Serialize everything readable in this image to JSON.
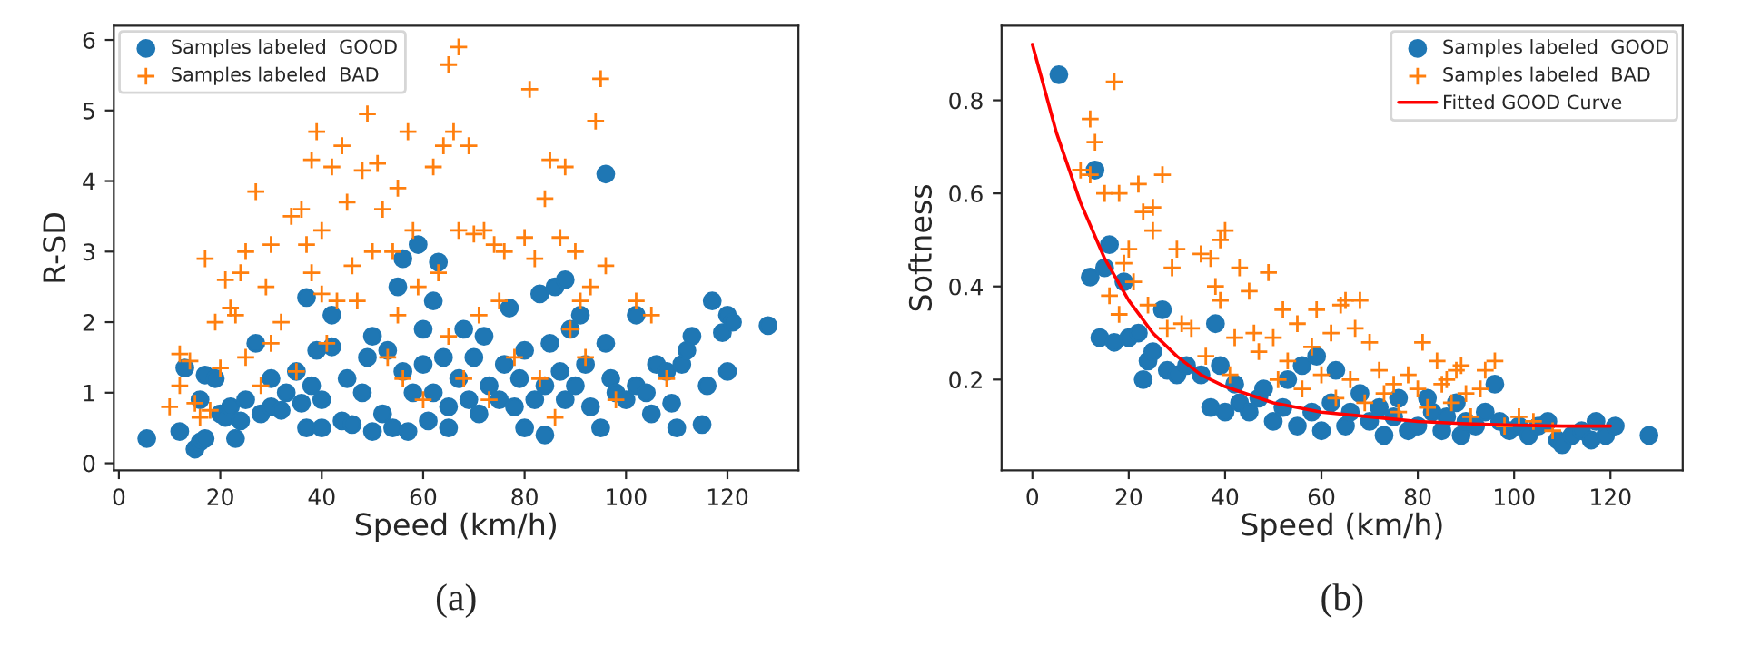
{
  "chart_data": [
    {
      "type": "scatter",
      "xlabel": "Speed (km/h)",
      "ylabel": "R-SD",
      "xlim": [
        -1,
        134
      ],
      "ylim": [
        -0.1,
        6.2
      ],
      "xticks": [
        0,
        20,
        40,
        60,
        80,
        100,
        120
      ],
      "yticks": [
        0,
        1,
        2,
        3,
        4,
        5,
        6
      ],
      "grid": false,
      "legend": "top left",
      "annotations": [
        "(a)"
      ],
      "series": [
        {
          "name": "Samples labeled  GOOD",
          "marker": "circle",
          "color": "#1f77b4",
          "x": [
            5.5,
            12,
            13,
            15,
            16,
            16,
            17,
            17,
            19,
            20,
            21,
            22,
            23,
            24,
            25,
            27,
            28,
            30,
            30,
            32,
            33,
            35,
            36,
            37,
            37,
            38,
            39,
            40,
            40,
            42,
            42,
            44,
            45,
            46,
            48,
            49,
            50,
            50,
            52,
            53,
            54,
            55,
            56,
            56,
            57,
            58,
            59,
            60,
            60,
            61,
            62,
            62,
            63,
            64,
            65,
            65,
            67,
            68,
            69,
            70,
            71,
            72,
            73,
            75,
            76,
            77,
            78,
            79,
            80,
            80,
            82,
            83,
            84,
            84,
            85,
            86,
            87,
            88,
            88,
            89,
            90,
            91,
            92,
            93,
            95,
            96,
            96,
            97,
            98,
            100,
            102,
            102,
            104,
            105,
            106,
            108,
            109,
            110,
            111,
            112,
            113,
            115,
            116,
            117,
            119,
            120,
            120,
            121,
            128
          ],
          "values": [
            0.35,
            0.45,
            1.35,
            0.2,
            0.3,
            0.9,
            1.25,
            0.35,
            1.2,
            0.7,
            0.65,
            0.8,
            0.35,
            0.6,
            0.9,
            1.7,
            0.7,
            1.2,
            0.8,
            0.75,
            1.0,
            1.3,
            0.85,
            2.35,
            0.5,
            1.1,
            1.6,
            0.5,
            0.9,
            1.65,
            2.1,
            0.6,
            1.2,
            0.55,
            1.0,
            1.5,
            1.8,
            0.45,
            0.7,
            1.6,
            0.5,
            2.5,
            1.3,
            2.9,
            0.45,
            1.0,
            3.1,
            1.9,
            1.4,
            0.6,
            2.3,
            1.0,
            2.85,
            1.5,
            0.8,
            0.5,
            1.2,
            1.9,
            0.9,
            1.5,
            0.7,
            1.8,
            1.1,
            0.9,
            1.4,
            2.2,
            0.8,
            1.2,
            0.5,
            1.6,
            0.9,
            2.4,
            1.1,
            0.4,
            1.7,
            2.5,
            1.3,
            0.9,
            2.6,
            1.9,
            1.1,
            2.1,
            1.4,
            0.8,
            0.5,
            4.1,
            1.7,
            1.2,
            1.0,
            0.9,
            1.1,
            2.1,
            1.0,
            0.7,
            1.4,
            1.3,
            0.85,
            0.5,
            1.4,
            1.6,
            1.8,
            0.55,
            1.1,
            2.3,
            1.85,
            2.1,
            1.3,
            2.0,
            1.95
          ]
        },
        {
          "name": "Samples labeled  BAD",
          "marker": "cross",
          "color": "#ff7f0e",
          "x": [
            10,
            12,
            12,
            14,
            15,
            16,
            17,
            18,
            19,
            20,
            21,
            22,
            23,
            24,
            25,
            25,
            27,
            28,
            29,
            30,
            30,
            32,
            34,
            35,
            36,
            37,
            38,
            38,
            39,
            40,
            40,
            41,
            42,
            43,
            44,
            45,
            46,
            47,
            48,
            49,
            50,
            51,
            52,
            53,
            54,
            55,
            55,
            56,
            57,
            58,
            59,
            60,
            65,
            62,
            63,
            64,
            65,
            66,
            67,
            67,
            68,
            69,
            70,
            71,
            72,
            73,
            74,
            75,
            76,
            78,
            80,
            81,
            82,
            83,
            84,
            85,
            86,
            87,
            88,
            89,
            90,
            91,
            92,
            93,
            94,
            95,
            96,
            98,
            102,
            105,
            108
          ],
          "values": [
            0.8,
            1.1,
            1.55,
            1.45,
            0.85,
            0.65,
            2.9,
            0.75,
            2.0,
            1.35,
            2.6,
            2.2,
            2.1,
            2.7,
            3.0,
            1.5,
            3.85,
            1.1,
            2.5,
            3.1,
            1.7,
            2.0,
            3.5,
            1.3,
            3.6,
            3.1,
            2.7,
            4.3,
            4.7,
            2.4,
            3.3,
            1.7,
            4.2,
            2.3,
            4.5,
            3.7,
            2.8,
            2.3,
            4.15,
            4.95,
            3.0,
            4.25,
            3.6,
            1.5,
            3.0,
            3.9,
            2.1,
            1.2,
            4.7,
            3.3,
            2.5,
            0.9,
            5.65,
            4.2,
            2.7,
            4.5,
            1.8,
            4.7,
            5.9,
            3.3,
            1.2,
            4.5,
            3.25,
            2.1,
            3.3,
            0.9,
            3.1,
            2.3,
            3.0,
            1.5,
            3.2,
            5.3,
            2.9,
            1.2,
            3.75,
            4.3,
            0.65,
            3.2,
            4.2,
            1.9,
            3.0,
            2.3,
            1.5,
            2.5,
            4.85,
            5.45,
            2.8,
            0.9,
            2.3,
            2.1,
            1.2
          ]
        }
      ]
    },
    {
      "type": "scatter",
      "xlabel": "Speed (km/h)",
      "ylabel": "Softness",
      "xlim": [
        -6.4,
        135
      ],
      "ylim": [
        0.005,
        0.96
      ],
      "xticks": [
        0,
        20,
        40,
        60,
        80,
        100,
        120
      ],
      "yticks": [
        0.2,
        0.4,
        0.6,
        0.8
      ],
      "grid": false,
      "legend": "top right",
      "annotations": [
        "(b)"
      ],
      "series": [
        {
          "name": "Samples labeled  GOOD",
          "marker": "circle",
          "color": "#1f77b4",
          "x": [
            5.5,
            12,
            13,
            14,
            15,
            16,
            17,
            19,
            20,
            22,
            23,
            24,
            25,
            27,
            28,
            30,
            32,
            35,
            37,
            38,
            39,
            40,
            42,
            43,
            45,
            47,
            48,
            50,
            52,
            53,
            55,
            56,
            58,
            59,
            60,
            62,
            63,
            65,
            66,
            68,
            70,
            72,
            73,
            75,
            76,
            78,
            80,
            82,
            83,
            85,
            86,
            88,
            89,
            90,
            92,
            94,
            96,
            97,
            99,
            101,
            103,
            105,
            107,
            109,
            110,
            112,
            114,
            116,
            117,
            119,
            121,
            128
          ],
          "values": [
            0.855,
            0.42,
            0.65,
            0.29,
            0.44,
            0.49,
            0.28,
            0.41,
            0.29,
            0.3,
            0.2,
            0.24,
            0.26,
            0.35,
            0.22,
            0.21,
            0.23,
            0.21,
            0.14,
            0.32,
            0.23,
            0.13,
            0.19,
            0.15,
            0.13,
            0.16,
            0.18,
            0.11,
            0.14,
            0.2,
            0.1,
            0.23,
            0.13,
            0.25,
            0.09,
            0.15,
            0.22,
            0.1,
            0.13,
            0.17,
            0.11,
            0.14,
            0.08,
            0.12,
            0.16,
            0.09,
            0.1,
            0.16,
            0.13,
            0.09,
            0.12,
            0.15,
            0.08,
            0.11,
            0.1,
            0.13,
            0.19,
            0.11,
            0.09,
            0.1,
            0.08,
            0.1,
            0.11,
            0.07,
            0.06,
            0.08,
            0.09,
            0.07,
            0.11,
            0.08,
            0.1,
            0.08
          ]
        },
        {
          "name": "Samples labeled  BAD",
          "marker": "cross",
          "color": "#ff7f0e",
          "x": [
            10,
            12,
            12,
            13,
            15,
            16,
            17,
            18,
            18,
            19,
            20,
            21,
            22,
            23,
            24,
            25,
            25,
            27,
            28,
            29,
            30,
            31,
            33,
            35,
            36,
            37,
            38,
            39,
            39,
            40,
            41,
            42,
            43,
            45,
            46,
            47,
            49,
            50,
            51,
            52,
            53,
            55,
            56,
            58,
            59,
            60,
            62,
            63,
            64,
            65,
            66,
            67,
            68,
            69,
            70,
            72,
            73,
            75,
            76,
            78,
            80,
            81,
            82,
            84,
            85,
            86,
            87,
            88,
            89,
            90,
            91,
            93,
            94,
            96,
            98,
            101,
            104,
            108
          ],
          "values": [
            0.65,
            0.64,
            0.76,
            0.71,
            0.6,
            0.38,
            0.84,
            0.6,
            0.34,
            0.45,
            0.48,
            0.41,
            0.62,
            0.56,
            0.36,
            0.52,
            0.57,
            0.64,
            0.31,
            0.44,
            0.48,
            0.32,
            0.31,
            0.47,
            0.25,
            0.46,
            0.4,
            0.5,
            0.37,
            0.52,
            0.21,
            0.29,
            0.44,
            0.39,
            0.3,
            0.26,
            0.43,
            0.29,
            0.2,
            0.35,
            0.24,
            0.32,
            0.18,
            0.27,
            0.35,
            0.21,
            0.3,
            0.16,
            0.36,
            0.37,
            0.2,
            0.31,
            0.37,
            0.15,
            0.28,
            0.22,
            0.17,
            0.19,
            0.13,
            0.21,
            0.18,
            0.28,
            0.14,
            0.24,
            0.19,
            0.2,
            0.15,
            0.22,
            0.23,
            0.17,
            0.12,
            0.18,
            0.22,
            0.24,
            0.1,
            0.12,
            0.11,
            0.09
          ]
        },
        {
          "name": "Fitted GOOD Curve",
          "type": "line",
          "marker": "none",
          "line_style": "solid",
          "color": "#ff0000",
          "x": [
            0,
            5,
            10,
            15,
            20,
            25,
            30,
            35,
            40,
            50,
            60,
            70,
            80,
            90,
            100,
            110,
            120
          ],
          "values": [
            0.92,
            0.73,
            0.58,
            0.46,
            0.37,
            0.3,
            0.25,
            0.21,
            0.185,
            0.15,
            0.13,
            0.12,
            0.11,
            0.105,
            0.102,
            0.1,
            0.1
          ]
        }
      ]
    }
  ]
}
